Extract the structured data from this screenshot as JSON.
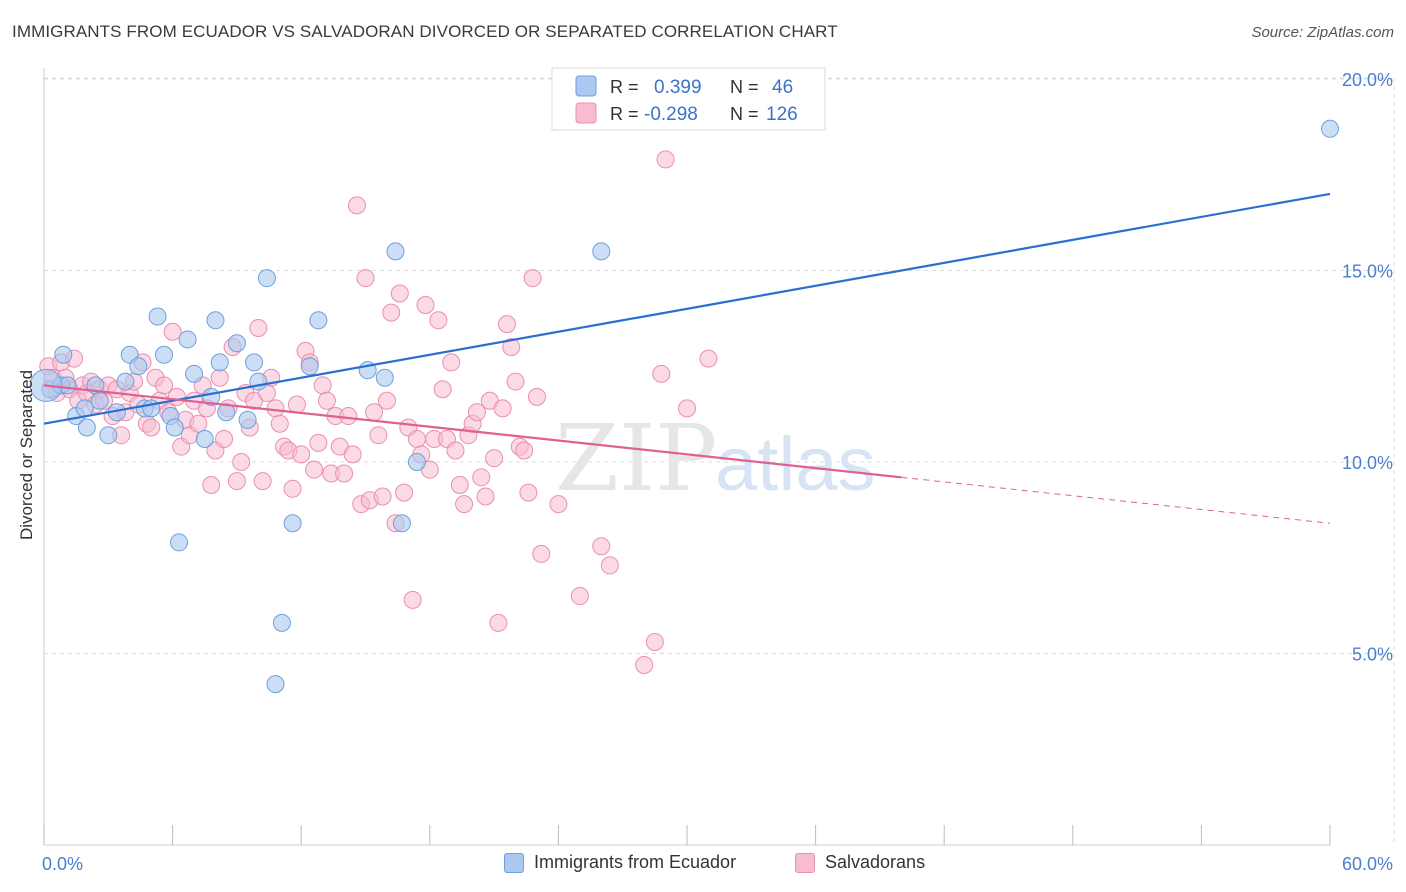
{
  "title": "IMMIGRANTS FROM ECUADOR VS SALVADORAN DIVORCED OR SEPARATED CORRELATION CHART",
  "source": "Source: ZipAtlas.com",
  "watermark": {
    "zip": "ZIP",
    "atlas": "atlas"
  },
  "legend_top": [
    {
      "r_label": "R =",
      "r_value": "0.399",
      "n_label": "N =",
      "n_value": "46"
    },
    {
      "r_label": "R =",
      "r_value": "-0.298",
      "n_label": "N =",
      "n_value": "126"
    }
  ],
  "legend_bottom": [
    {
      "label": "Immigrants from Ecuador"
    },
    {
      "label": "Salvadorans"
    }
  ],
  "colors": {
    "blue_fill": "#aac8f0",
    "blue_stroke": "#6fa0dc",
    "blue_line": "#2a6fce",
    "pink_fill": "#f7bcd0",
    "pink_stroke": "#e890b0",
    "pink_line": "#e06090",
    "tick_label": "#4a7fcf",
    "grid": "#dcdcdc"
  },
  "chart_data": {
    "type": "scatter",
    "title": "IMMIGRANTS FROM ECUADOR VS SALVADORAN DIVORCED OR SEPARATED CORRELATION CHART",
    "xlabel": "",
    "ylabel": "Divorced or Separated",
    "xlim": [
      0,
      60
    ],
    "ylim": [
      0,
      20
    ],
    "x_tick_labels": [
      "0.0%",
      "60.0%"
    ],
    "y_tick_labels": [
      {
        "value": 20,
        "label": "20.0%"
      },
      {
        "value": 15,
        "label": "15.0%"
      },
      {
        "value": 10,
        "label": "10.0%"
      },
      {
        "value": 5,
        "label": "5.0%"
      }
    ],
    "grid": true,
    "series": [
      {
        "name": "Immigrants from Ecuador",
        "R": 0.399,
        "N": 46,
        "trend": {
          "x": [
            0,
            60
          ],
          "y": [
            11.0,
            17.0
          ]
        },
        "points": [
          [
            0.3,
            11.9
          ],
          [
            0.8,
            12.0
          ],
          [
            0.9,
            12.8
          ],
          [
            1.1,
            12.0
          ],
          [
            1.5,
            11.2
          ],
          [
            1.9,
            11.4
          ],
          [
            2.0,
            10.9
          ],
          [
            2.4,
            12.0
          ],
          [
            2.6,
            11.6
          ],
          [
            3.0,
            10.7
          ],
          [
            3.4,
            11.3
          ],
          [
            3.8,
            12.1
          ],
          [
            4.0,
            12.8
          ],
          [
            4.4,
            12.5
          ],
          [
            4.7,
            11.4
          ],
          [
            5.0,
            11.4
          ],
          [
            5.3,
            13.8
          ],
          [
            5.6,
            12.8
          ],
          [
            5.9,
            11.2
          ],
          [
            6.1,
            10.9
          ],
          [
            6.3,
            7.9
          ],
          [
            6.7,
            13.2
          ],
          [
            7.0,
            12.3
          ],
          [
            7.5,
            10.6
          ],
          [
            7.8,
            11.7
          ],
          [
            8.0,
            13.7
          ],
          [
            8.2,
            12.6
          ],
          [
            8.5,
            11.3
          ],
          [
            9.0,
            13.1
          ],
          [
            9.5,
            11.1
          ],
          [
            9.8,
            12.6
          ],
          [
            10.0,
            12.1
          ],
          [
            10.4,
            14.8
          ],
          [
            10.8,
            4.2
          ],
          [
            11.1,
            5.8
          ],
          [
            11.6,
            8.4
          ],
          [
            12.4,
            12.5
          ],
          [
            12.8,
            13.7
          ],
          [
            15.1,
            12.4
          ],
          [
            15.9,
            12.2
          ],
          [
            16.4,
            15.5
          ],
          [
            16.7,
            8.4
          ],
          [
            17.4,
            10.0
          ],
          [
            26.0,
            15.5
          ],
          [
            60.0,
            18.7
          ],
          [
            0.1,
            12.0
          ]
        ]
      },
      {
        "name": "Salvadorans",
        "R": -0.298,
        "N": 126,
        "trend": {
          "x": [
            0,
            60
          ],
          "y": [
            12.0,
            8.4
          ],
          "solid_until_x": 40
        },
        "points": [
          [
            0.2,
            12.5
          ],
          [
            0.4,
            12.2
          ],
          [
            0.6,
            11.8
          ],
          [
            0.8,
            12.6
          ],
          [
            1.0,
            12.2
          ],
          [
            1.2,
            11.9
          ],
          [
            1.4,
            12.7
          ],
          [
            1.6,
            11.6
          ],
          [
            1.8,
            12.0
          ],
          [
            2.0,
            11.8
          ],
          [
            2.2,
            12.1
          ],
          [
            2.4,
            11.5
          ],
          [
            2.6,
            11.9
          ],
          [
            2.8,
            11.6
          ],
          [
            3.0,
            12.0
          ],
          [
            3.2,
            11.2
          ],
          [
            3.4,
            11.9
          ],
          [
            3.6,
            10.7
          ],
          [
            3.8,
            11.3
          ],
          [
            4.0,
            11.8
          ],
          [
            4.2,
            12.1
          ],
          [
            4.4,
            11.5
          ],
          [
            4.6,
            12.6
          ],
          [
            4.8,
            11.0
          ],
          [
            5.0,
            10.9
          ],
          [
            5.2,
            12.2
          ],
          [
            5.4,
            11.6
          ],
          [
            5.6,
            12.0
          ],
          [
            5.8,
            11.3
          ],
          [
            6.0,
            13.4
          ],
          [
            6.2,
            11.7
          ],
          [
            6.4,
            10.4
          ],
          [
            6.6,
            11.1
          ],
          [
            6.8,
            10.7
          ],
          [
            7.0,
            11.6
          ],
          [
            7.2,
            11.0
          ],
          [
            7.4,
            12.0
          ],
          [
            7.6,
            11.4
          ],
          [
            7.8,
            9.4
          ],
          [
            8.0,
            10.3
          ],
          [
            8.2,
            12.2
          ],
          [
            8.4,
            10.6
          ],
          [
            8.6,
            11.4
          ],
          [
            8.8,
            13.0
          ],
          [
            9.0,
            9.5
          ],
          [
            9.2,
            10.0
          ],
          [
            9.4,
            11.8
          ],
          [
            9.6,
            10.9
          ],
          [
            9.8,
            11.6
          ],
          [
            10.0,
            13.5
          ],
          [
            10.2,
            9.5
          ],
          [
            10.4,
            11.8
          ],
          [
            10.6,
            12.2
          ],
          [
            10.8,
            11.4
          ],
          [
            11.0,
            11.0
          ],
          [
            11.2,
            10.4
          ],
          [
            11.4,
            10.3
          ],
          [
            11.6,
            9.3
          ],
          [
            11.8,
            11.5
          ],
          [
            12.0,
            10.2
          ],
          [
            12.2,
            12.9
          ],
          [
            12.4,
            12.6
          ],
          [
            12.6,
            9.8
          ],
          [
            12.8,
            10.5
          ],
          [
            13.0,
            12.0
          ],
          [
            13.2,
            11.6
          ],
          [
            13.4,
            9.7
          ],
          [
            13.6,
            11.2
          ],
          [
            13.8,
            10.4
          ],
          [
            14.0,
            9.7
          ],
          [
            14.2,
            11.2
          ],
          [
            14.4,
            10.2
          ],
          [
            14.6,
            16.7
          ],
          [
            14.8,
            8.9
          ],
          [
            15.0,
            14.8
          ],
          [
            15.2,
            9.0
          ],
          [
            15.4,
            11.3
          ],
          [
            15.6,
            10.7
          ],
          [
            15.8,
            9.1
          ],
          [
            16.0,
            11.6
          ],
          [
            16.2,
            13.9
          ],
          [
            16.4,
            8.4
          ],
          [
            16.6,
            14.4
          ],
          [
            16.8,
            9.2
          ],
          [
            17.0,
            10.9
          ],
          [
            17.2,
            6.4
          ],
          [
            17.4,
            10.6
          ],
          [
            17.6,
            10.2
          ],
          [
            17.8,
            14.1
          ],
          [
            18.0,
            9.8
          ],
          [
            18.2,
            10.6
          ],
          [
            18.4,
            13.7
          ],
          [
            18.6,
            11.9
          ],
          [
            18.8,
            10.6
          ],
          [
            19.0,
            12.6
          ],
          [
            19.2,
            10.3
          ],
          [
            19.4,
            9.4
          ],
          [
            19.6,
            8.9
          ],
          [
            19.8,
            10.7
          ],
          [
            20.0,
            11.0
          ],
          [
            20.2,
            11.3
          ],
          [
            20.4,
            9.6
          ],
          [
            20.6,
            9.1
          ],
          [
            20.8,
            11.6
          ],
          [
            21.0,
            10.1
          ],
          [
            21.2,
            5.8
          ],
          [
            21.4,
            11.4
          ],
          [
            21.6,
            13.6
          ],
          [
            21.8,
            13.0
          ],
          [
            22.0,
            12.1
          ],
          [
            22.2,
            10.4
          ],
          [
            22.4,
            10.3
          ],
          [
            22.6,
            9.2
          ],
          [
            22.8,
            14.8
          ],
          [
            23.0,
            11.7
          ],
          [
            23.2,
            7.6
          ],
          [
            24.0,
            8.9
          ],
          [
            25.0,
            6.5
          ],
          [
            26.0,
            7.8
          ],
          [
            26.4,
            7.3
          ],
          [
            28.0,
            4.7
          ],
          [
            28.5,
            5.3
          ],
          [
            29.0,
            17.9
          ],
          [
            30.0,
            11.4
          ],
          [
            31.0,
            12.7
          ],
          [
            28.8,
            12.3
          ]
        ]
      }
    ]
  }
}
